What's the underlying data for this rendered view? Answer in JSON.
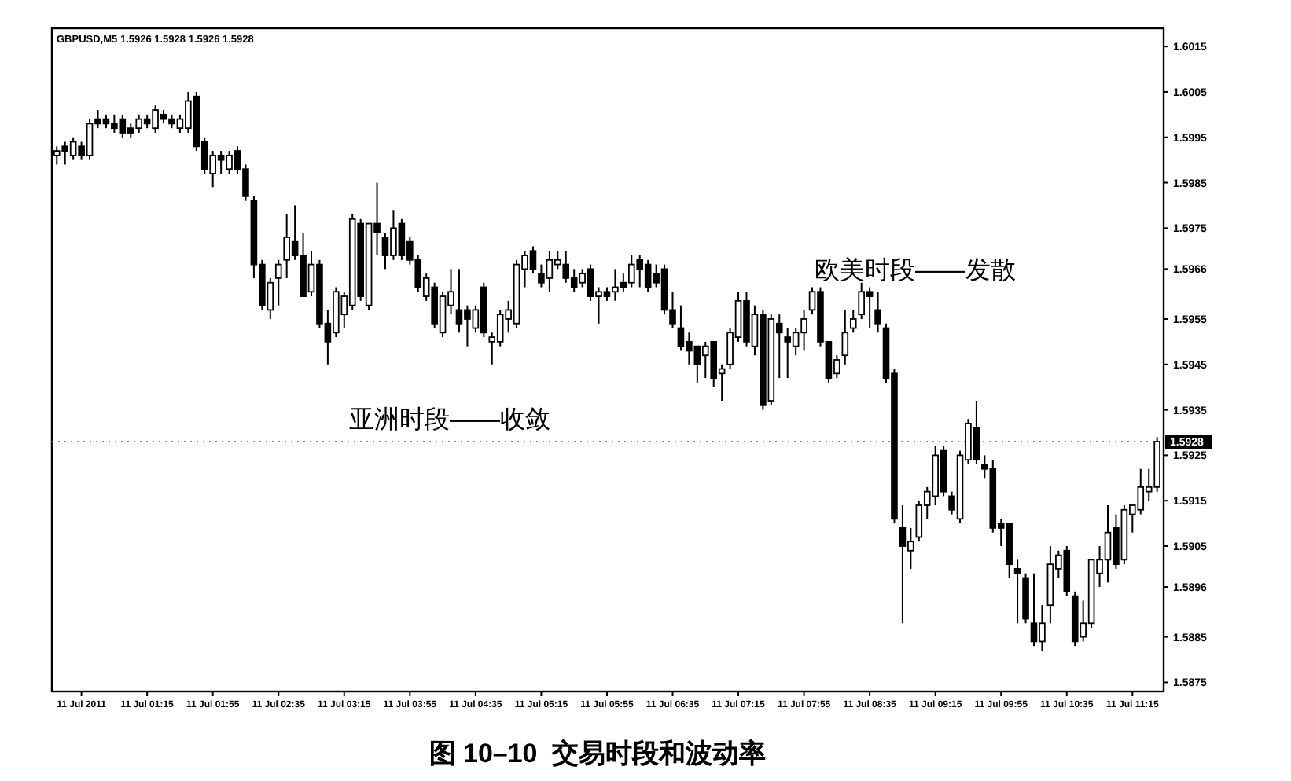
{
  "chart_data": {
    "type": "candlestick",
    "title": "图 10–10  交易时段和波动率",
    "subtitle": "GBPUSD,M5 1.5926 1.5928 1.5926 1.5928",
    "color": "#000000",
    "annotations": [
      "亚洲时段——收敛",
      "欧美时段——发散"
    ],
    "x": [
      "2011-07-11T00:20",
      "2011-07-11T00:25",
      "2011-07-11T00:30",
      "2011-07-11T00:35",
      "2011-07-11T00:40",
      "2011-07-11T00:45",
      "2011-07-11T00:50",
      "2011-07-11T00:55",
      "2011-07-11T01:00",
      "2011-07-11T01:05",
      "2011-07-11T01:10",
      "2011-07-11T01:15",
      "2011-07-11T01:20",
      "2011-07-11T01:25",
      "2011-07-11T01:30",
      "2011-07-11T01:35",
      "2011-07-11T01:40",
      "2011-07-11T01:45",
      "2011-07-11T01:50",
      "2011-07-11T01:55",
      "2011-07-11T02:00",
      "2011-07-11T02:05",
      "2011-07-11T02:10",
      "2011-07-11T02:15",
      "2011-07-11T02:20",
      "2011-07-11T02:25",
      "2011-07-11T02:30",
      "2011-07-11T02:35",
      "2011-07-11T02:40",
      "2011-07-11T02:45",
      "2011-07-11T02:50",
      "2011-07-11T02:55",
      "2011-07-11T03:00",
      "2011-07-11T03:05",
      "2011-07-11T03:10",
      "2011-07-11T03:15",
      "2011-07-11T03:20",
      "2011-07-11T03:25",
      "2011-07-11T03:30",
      "2011-07-11T03:35",
      "2011-07-11T03:40",
      "2011-07-11T03:45",
      "2011-07-11T03:50",
      "2011-07-11T03:55",
      "2011-07-11T04:00",
      "2011-07-11T04:05",
      "2011-07-11T04:10",
      "2011-07-11T04:15",
      "2011-07-11T04:20",
      "2011-07-11T04:25",
      "2011-07-11T04:30",
      "2011-07-11T04:35",
      "2011-07-11T04:40",
      "2011-07-11T04:45",
      "2011-07-11T04:50",
      "2011-07-11T04:55",
      "2011-07-11T05:00",
      "2011-07-11T05:05",
      "2011-07-11T05:10",
      "2011-07-11T05:15",
      "2011-07-11T05:20",
      "2011-07-11T05:25",
      "2011-07-11T05:30",
      "2011-07-11T05:35",
      "2011-07-11T05:40",
      "2011-07-11T05:45",
      "2011-07-11T05:50",
      "2011-07-11T05:55",
      "2011-07-11T06:00",
      "2011-07-11T06:05",
      "2011-07-11T06:10",
      "2011-07-11T06:15",
      "2011-07-11T06:20",
      "2011-07-11T06:25",
      "2011-07-11T06:30",
      "2011-07-11T06:35",
      "2011-07-11T06:40",
      "2011-07-11T06:45",
      "2011-07-11T06:50",
      "2011-07-11T06:55",
      "2011-07-11T07:00",
      "2011-07-11T07:05",
      "2011-07-11T07:10",
      "2011-07-11T07:15",
      "2011-07-11T07:20",
      "2011-07-11T07:25",
      "2011-07-11T07:30",
      "2011-07-11T07:35",
      "2011-07-11T07:40",
      "2011-07-11T07:45",
      "2011-07-11T07:50",
      "2011-07-11T07:55",
      "2011-07-11T08:00",
      "2011-07-11T08:05",
      "2011-07-11T08:10",
      "2011-07-11T08:15",
      "2011-07-11T08:20",
      "2011-07-11T08:25",
      "2011-07-11T08:30",
      "2011-07-11T08:35",
      "2011-07-11T08:40",
      "2011-07-11T08:45",
      "2011-07-11T08:50",
      "2011-07-11T08:55",
      "2011-07-11T09:00",
      "2011-07-11T09:05",
      "2011-07-11T09:10",
      "2011-07-11T09:15",
      "2011-07-11T09:20",
      "2011-07-11T09:25",
      "2011-07-11T09:30",
      "2011-07-11T09:35",
      "2011-07-11T09:40",
      "2011-07-11T09:45",
      "2011-07-11T09:50",
      "2011-07-11T09:55",
      "2011-07-11T10:00",
      "2011-07-11T10:05",
      "2011-07-11T10:10",
      "2011-07-11T10:15",
      "2011-07-11T10:20",
      "2011-07-11T10:25",
      "2011-07-11T10:30",
      "2011-07-11T10:35",
      "2011-07-11T10:40",
      "2011-07-11T10:45",
      "2011-07-11T10:50",
      "2011-07-11T10:55",
      "2011-07-11T11:00",
      "2011-07-11T11:05",
      "2011-07-11T11:10",
      "2011-07-11T11:15",
      "2011-07-11T11:20",
      "2011-07-11T11:25",
      "2011-07-11T11:30"
    ],
    "ohlc": [
      [
        1.5991,
        1.5993,
        1.5989,
        1.5992
      ],
      [
        1.5993,
        1.5994,
        1.5989,
        1.5992
      ],
      [
        1.5991,
        1.5995,
        1.599,
        1.5994
      ],
      [
        1.5993,
        1.5994,
        1.599,
        1.5991
      ],
      [
        1.5991,
        1.5999,
        1.599,
        1.5998
      ],
      [
        1.5999,
        1.6001,
        1.5997,
        1.5998
      ],
      [
        1.5999,
        1.6,
        1.5997,
        1.5998
      ],
      [
        1.5998,
        1.6,
        1.5996,
        1.5997
      ],
      [
        1.5999,
        1.6,
        1.5995,
        1.5996
      ],
      [
        1.5997,
        1.5998,
        1.5995,
        1.5996
      ],
      [
        1.5997,
        1.6,
        1.5996,
        1.5999
      ],
      [
        1.5999,
        1.6,
        1.5997,
        1.5998
      ],
      [
        1.5997,
        1.6002,
        1.5996,
        1.6001
      ],
      [
        1.6,
        1.6001,
        1.5998,
        1.5999
      ],
      [
        1.5999,
        1.6,
        1.5997,
        1.5998
      ],
      [
        1.5997,
        1.6,
        1.5996,
        1.5999
      ],
      [
        1.5997,
        1.6005,
        1.5996,
        1.6003
      ],
      [
        1.6004,
        1.6005,
        1.5992,
        1.5993
      ],
      [
        1.5994,
        1.5995,
        1.5987,
        1.5988
      ],
      [
        1.5987,
        1.5992,
        1.5984,
        1.5991
      ],
      [
        1.5991,
        1.5992,
        1.5987,
        1.599
      ],
      [
        1.5988,
        1.5992,
        1.5987,
        1.5991
      ],
      [
        1.5992,
        1.5993,
        1.5987,
        1.5988
      ],
      [
        1.5988,
        1.5989,
        1.5981,
        1.5982
      ],
      [
        1.5981,
        1.5982,
        1.5964,
        1.5967
      ],
      [
        1.5967,
        1.5968,
        1.5957,
        1.5958
      ],
      [
        1.5957,
        1.5964,
        1.5955,
        1.5963
      ],
      [
        1.5964,
        1.5968,
        1.5958,
        1.5967
      ],
      [
        1.5968,
        1.5978,
        1.5964,
        1.5973
      ],
      [
        1.5972,
        1.598,
        1.5968,
        1.5969
      ],
      [
        1.5969,
        1.5974,
        1.596,
        1.596
      ],
      [
        1.5961,
        1.597,
        1.596,
        1.5967
      ],
      [
        1.5967,
        1.5968,
        1.5953,
        1.5954
      ],
      [
        1.5954,
        1.5957,
        1.5945,
        1.595
      ],
      [
        1.5952,
        1.5962,
        1.5951,
        1.5961
      ],
      [
        1.5956,
        1.5961,
        1.5953,
        1.596
      ],
      [
        1.5958,
        1.5978,
        1.5957,
        1.5977
      ],
      [
        1.5976,
        1.5977,
        1.5959,
        1.596
      ],
      [
        1.5958,
        1.5976,
        1.5957,
        1.5976
      ],
      [
        1.5976,
        1.5985,
        1.5969,
        1.5974
      ],
      [
        1.5973,
        1.5974,
        1.5966,
        1.5969
      ],
      [
        1.5969,
        1.5979,
        1.5968,
        1.5975
      ],
      [
        1.5976,
        1.5977,
        1.5968,
        1.5969
      ],
      [
        1.5972,
        1.5973,
        1.5967,
        1.5968
      ],
      [
        1.5968,
        1.5969,
        1.5961,
        1.5962
      ],
      [
        1.596,
        1.5965,
        1.5959,
        1.5964
      ],
      [
        1.5962,
        1.5963,
        1.5953,
        1.5954
      ],
      [
        1.5952,
        1.5961,
        1.5951,
        1.596
      ],
      [
        1.5958,
        1.5966,
        1.5956,
        1.5961
      ],
      [
        1.5957,
        1.5966,
        1.5952,
        1.5954
      ],
      [
        1.5957,
        1.5958,
        1.5949,
        1.5955
      ],
      [
        1.5953,
        1.5958,
        1.5952,
        1.5957
      ],
      [
        1.5962,
        1.5963,
        1.5951,
        1.5952
      ],
      [
        1.595,
        1.5952,
        1.5945,
        1.5951
      ],
      [
        1.595,
        1.5957,
        1.5949,
        1.5956
      ],
      [
        1.5955,
        1.5959,
        1.5952,
        1.5957
      ],
      [
        1.5954,
        1.5968,
        1.5953,
        1.5967
      ],
      [
        1.5966,
        1.597,
        1.5962,
        1.5969
      ],
      [
        1.597,
        1.5971,
        1.5965,
        1.5966
      ],
      [
        1.5965,
        1.5967,
        1.5962,
        1.5963
      ],
      [
        1.5964,
        1.597,
        1.5961,
        1.5968
      ],
      [
        1.5967,
        1.597,
        1.5966,
        1.5968
      ],
      [
        1.5967,
        1.597,
        1.5963,
        1.5964
      ],
      [
        1.5964,
        1.5966,
        1.5961,
        1.5962
      ],
      [
        1.5963,
        1.5966,
        1.5962,
        1.5965
      ],
      [
        1.5966,
        1.5967,
        1.5959,
        1.596
      ],
      [
        1.596,
        1.5962,
        1.5954,
        1.5961
      ],
      [
        1.5961,
        1.5962,
        1.5959,
        1.596
      ],
      [
        1.5961,
        1.5966,
        1.5959,
        1.5962
      ],
      [
        1.5963,
        1.5965,
        1.5961,
        1.5962
      ],
      [
        1.5963,
        1.5969,
        1.5962,
        1.5967
      ],
      [
        1.5968,
        1.5969,
        1.5962,
        1.5966
      ],
      [
        1.5967,
        1.5968,
        1.5961,
        1.5962
      ],
      [
        1.5965,
        1.5967,
        1.5962,
        1.5963
      ],
      [
        1.5966,
        1.5967,
        1.5956,
        1.5957
      ],
      [
        1.5957,
        1.5961,
        1.5953,
        1.5954
      ],
      [
        1.5953,
        1.5958,
        1.5948,
        1.5949
      ],
      [
        1.595,
        1.5952,
        1.5945,
        1.5948
      ],
      [
        1.5949,
        1.5949,
        1.5941,
        1.5945
      ],
      [
        1.5947,
        1.595,
        1.5942,
        1.5949
      ],
      [
        1.595,
        1.595,
        1.594,
        1.5942
      ],
      [
        1.5943,
        1.5945,
        1.5937,
        1.5944
      ],
      [
        1.5945,
        1.5953,
        1.5944,
        1.5952
      ],
      [
        1.5951,
        1.5961,
        1.595,
        1.5959
      ],
      [
        1.5959,
        1.5961,
        1.5949,
        1.595
      ],
      [
        1.5949,
        1.5958,
        1.5947,
        1.5956
      ],
      [
        1.5956,
        1.5957,
        1.5935,
        1.5936
      ],
      [
        1.5937,
        1.5956,
        1.5936,
        1.5955
      ],
      [
        1.5954,
        1.5956,
        1.5942,
        1.5952
      ],
      [
        1.5951,
        1.5953,
        1.5942,
        1.595
      ],
      [
        1.5949,
        1.5953,
        1.5947,
        1.5952
      ],
      [
        1.5952,
        1.5957,
        1.5948,
        1.5955
      ],
      [
        1.5957,
        1.5962,
        1.5956,
        1.5961
      ],
      [
        1.5961,
        1.5962,
        1.5949,
        1.595
      ],
      [
        1.595,
        1.595,
        1.5941,
        1.5942
      ],
      [
        1.5943,
        1.5947,
        1.5942,
        1.5946
      ],
      [
        1.5947,
        1.5957,
        1.5945,
        1.5952
      ],
      [
        1.5953,
        1.5957,
        1.5952,
        1.5955
      ],
      [
        1.5956,
        1.5963,
        1.5955,
        1.5961
      ],
      [
        1.5961,
        1.5962,
        1.5953,
        1.596
      ],
      [
        1.5957,
        1.5961,
        1.5952,
        1.5954
      ],
      [
        1.5953,
        1.5954,
        1.5941,
        1.5942
      ],
      [
        1.5943,
        1.5944,
        1.591,
        1.5911
      ],
      [
        1.5909,
        1.5914,
        1.5888,
        1.5905
      ],
      [
        1.5904,
        1.5909,
        1.59,
        1.5906
      ],
      [
        1.5907,
        1.5915,
        1.5906,
        1.5914
      ],
      [
        1.5914,
        1.5918,
        1.5911,
        1.5917
      ],
      [
        1.5916,
        1.5927,
        1.5914,
        1.5925
      ],
      [
        1.5926,
        1.5927,
        1.5916,
        1.5917
      ],
      [
        1.5916,
        1.5917,
        1.5912,
        1.5913
      ],
      [
        1.5911,
        1.5926,
        1.591,
        1.5925
      ],
      [
        1.5924,
        1.5933,
        1.5923,
        1.5932
      ],
      [
        1.5931,
        1.5937,
        1.5923,
        1.5924
      ],
      [
        1.5923,
        1.5925,
        1.592,
        1.5922
      ],
      [
        1.5922,
        1.5924,
        1.5908,
        1.5909
      ],
      [
        1.591,
        1.5911,
        1.5905,
        1.5909
      ],
      [
        1.591,
        1.591,
        1.5898,
        1.5901
      ],
      [
        1.59,
        1.5902,
        1.5888,
        1.5899
      ],
      [
        1.5898,
        1.5899,
        1.5888,
        1.5889
      ],
      [
        1.5888,
        1.5899,
        1.5883,
        1.5884
      ],
      [
        1.5884,
        1.5892,
        1.5882,
        1.5888
      ],
      [
        1.5892,
        1.5905,
        1.5888,
        1.5901
      ],
      [
        1.59,
        1.5904,
        1.5898,
        1.5903
      ],
      [
        1.5904,
        1.5905,
        1.5894,
        1.5895
      ],
      [
        1.5894,
        1.5895,
        1.5883,
        1.5884
      ],
      [
        1.5885,
        1.5893,
        1.5884,
        1.5888
      ],
      [
        1.5888,
        1.5902,
        1.5887,
        1.5902
      ],
      [
        1.5899,
        1.5905,
        1.5896,
        1.5902
      ],
      [
        1.5902,
        1.5914,
        1.5897,
        1.5908
      ],
      [
        1.5909,
        1.5912,
        1.59,
        1.5901
      ],
      [
        1.5902,
        1.5914,
        1.5901,
        1.5913
      ],
      [
        1.5912,
        1.5914,
        1.5908,
        1.5914
      ],
      [
        1.5913,
        1.5922,
        1.5912,
        1.5918
      ],
      [
        1.5917,
        1.5922,
        1.5915,
        1.5918
      ],
      [
        1.5918,
        1.5929,
        1.5917,
        1.5928
      ]
    ],
    "xlim": [
      "2011-07-11T00:17",
      "2011-07-11T11:34"
    ],
    "ylim": [
      1.5873,
      1.6019
    ],
    "xticks": [
      {
        "value": "2011-07-11T00:35",
        "label": "11 Jul 2011"
      },
      {
        "value": "2011-07-11T01:15",
        "label": "11 Jul 01:15"
      },
      {
        "value": "2011-07-11T01:55",
        "label": "11 Jul 01:55"
      },
      {
        "value": "2011-07-11T02:35",
        "label": "11 Jul 02:35"
      },
      {
        "value": "2011-07-11T03:15",
        "label": "11 Jul 03:15"
      },
      {
        "value": "2011-07-11T03:55",
        "label": "11 Jul 03:55"
      },
      {
        "value": "2011-07-11T04:35",
        "label": "11 Jul 04:35"
      },
      {
        "value": "2011-07-11T05:15",
        "label": "11 Jul 05:15"
      },
      {
        "value": "2011-07-11T05:55",
        "label": "11 Jul 05:55"
      },
      {
        "value": "2011-07-11T06:35",
        "label": "11 Jul 06:35"
      },
      {
        "value": "2011-07-11T07:15",
        "label": "11 Jul 07:15"
      },
      {
        "value": "2011-07-11T07:55",
        "label": "11 Jul 07:55"
      },
      {
        "value": "2011-07-11T08:35",
        "label": "11 Jul 08:35"
      },
      {
        "value": "2011-07-11T09:15",
        "label": "11 Jul 09:15"
      },
      {
        "value": "2011-07-11T09:55",
        "label": "11 Jul 09:55"
      },
      {
        "value": "2011-07-11T10:35",
        "label": "11 Jul 10:35"
      },
      {
        "value": "2011-07-11T11:15",
        "label": "11 Jul 11:15"
      }
    ],
    "yticks": [
      1.6015,
      1.6005,
      1.5995,
      1.5985,
      1.5975,
      1.5966,
      1.5955,
      1.5945,
      1.5935,
      1.5925,
      1.5915,
      1.5905,
      1.5896,
      1.5885,
      1.5875
    ],
    "ref_lines": [
      {
        "axis": "y",
        "value": 1.5928,
        "label": "1.5928",
        "line_style": "dotted"
      }
    ]
  }
}
